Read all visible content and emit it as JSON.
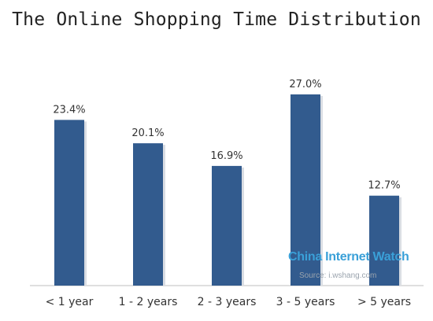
{
  "chart_data": {
    "type": "bar",
    "title": "The Online Shopping Time Distribution",
    "categories": [
      "< 1 year",
      "1 - 2 years",
      "2 - 3 years",
      "3 - 5 years",
      "> 5 years"
    ],
    "values": [
      23.4,
      20.1,
      16.9,
      27.0,
      12.7
    ],
    "data_labels": [
      "23.4%",
      "20.1%",
      "16.9%",
      "27.0%",
      "12.7%"
    ],
    "xlabel": "",
    "ylabel": "",
    "ylim": [
      0,
      32
    ],
    "grid": false,
    "bar_color": "#325b8e"
  },
  "watermark": {
    "brand": "China Internet Watch",
    "source": "Source: i.wshang.com"
  }
}
